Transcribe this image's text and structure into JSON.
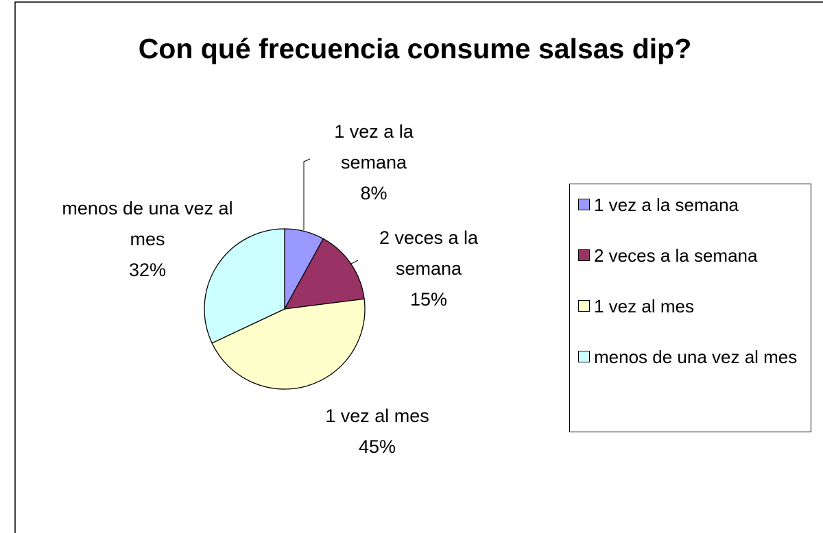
{
  "chart_data": {
    "type": "pie",
    "title": "Con qué frecuencia consume salsas dip?",
    "categories": [
      "1 vez a la semana",
      "2 veces a la semana",
      "1 vez al mes",
      "menos de una vez al mes"
    ],
    "values": [
      8,
      15,
      45,
      32
    ],
    "value_labels": [
      "8%",
      "15%",
      "45%",
      "32%"
    ],
    "colors": [
      "#9999ff",
      "#993366",
      "#ffffcc",
      "#ccffff"
    ],
    "legend": "right"
  }
}
